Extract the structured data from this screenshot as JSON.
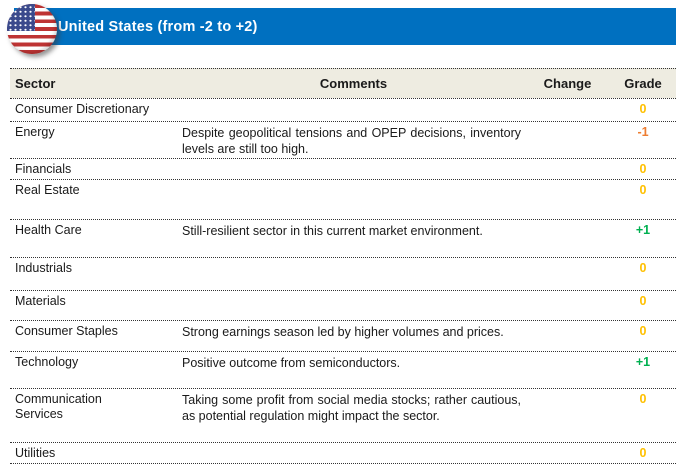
{
  "header": {
    "title": "United States (from -2 to +2)",
    "flag_icon": "us-flag-icon",
    "bar_color": "#0070C0"
  },
  "table": {
    "columns": {
      "sector": "Sector",
      "comments": "Comments",
      "change": "Change",
      "grade": "Grade"
    },
    "grade_colors": {
      "0": "#FFC000",
      "-1": "#ED7D31",
      "+1": "#00B050"
    },
    "rows": [
      {
        "sector": "Consumer Discretionary",
        "comments": "",
        "change": "",
        "grade": "0"
      },
      {
        "sector": "Energy",
        "comments": "Despite geopolitical tensions and OPEP decisions, inventory levels are still too high.",
        "change": "",
        "grade": "-1"
      },
      {
        "sector": "Financials",
        "comments": "",
        "change": "",
        "grade": "0"
      },
      {
        "sector": "Real Estate",
        "comments": "",
        "change": "",
        "grade": "0"
      },
      {
        "sector": "Health Care",
        "comments": "Still-resilient sector in this current market environment.",
        "change": "",
        "grade": "+1"
      },
      {
        "sector": "Industrials",
        "comments": "",
        "change": "",
        "grade": "0"
      },
      {
        "sector": "Materials",
        "comments": "",
        "change": "",
        "grade": "0"
      },
      {
        "sector": "Consumer Staples",
        "comments": "Strong earnings season led by higher volumes and prices.",
        "change": "",
        "grade": "0"
      },
      {
        "sector": "Technology",
        "comments": "Positive outcome from semiconductors.",
        "change": "",
        "grade": "+1"
      },
      {
        "sector": "Communication\nServices",
        "comments": "Taking some profit from social media stocks; rather cautious, as potential regulation might impact the sector.",
        "change": "",
        "grade": "0"
      },
      {
        "sector": "Utilities",
        "comments": "",
        "change": "",
        "grade": "0"
      }
    ]
  }
}
